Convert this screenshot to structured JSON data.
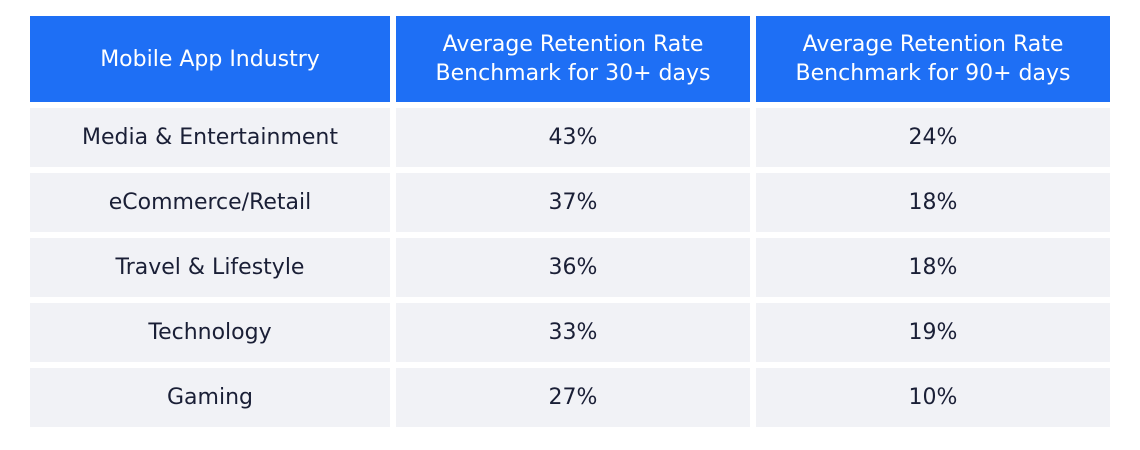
{
  "table": {
    "header": [
      "Mobile App Industry",
      "Average Retention Rate Benchmark for 30+ days",
      "Average Retention Rate Benchmark for 90+ days"
    ],
    "rows": [
      [
        "Media & Entertainment",
        "43%",
        "24%"
      ],
      [
        "eCommerce/Retail",
        "37%",
        "18%"
      ],
      [
        "Travel & Lifestyle",
        "36%",
        "18%"
      ],
      [
        "Technology",
        "33%",
        "19%"
      ],
      [
        "Gaming",
        "27%",
        "10%"
      ]
    ]
  }
}
